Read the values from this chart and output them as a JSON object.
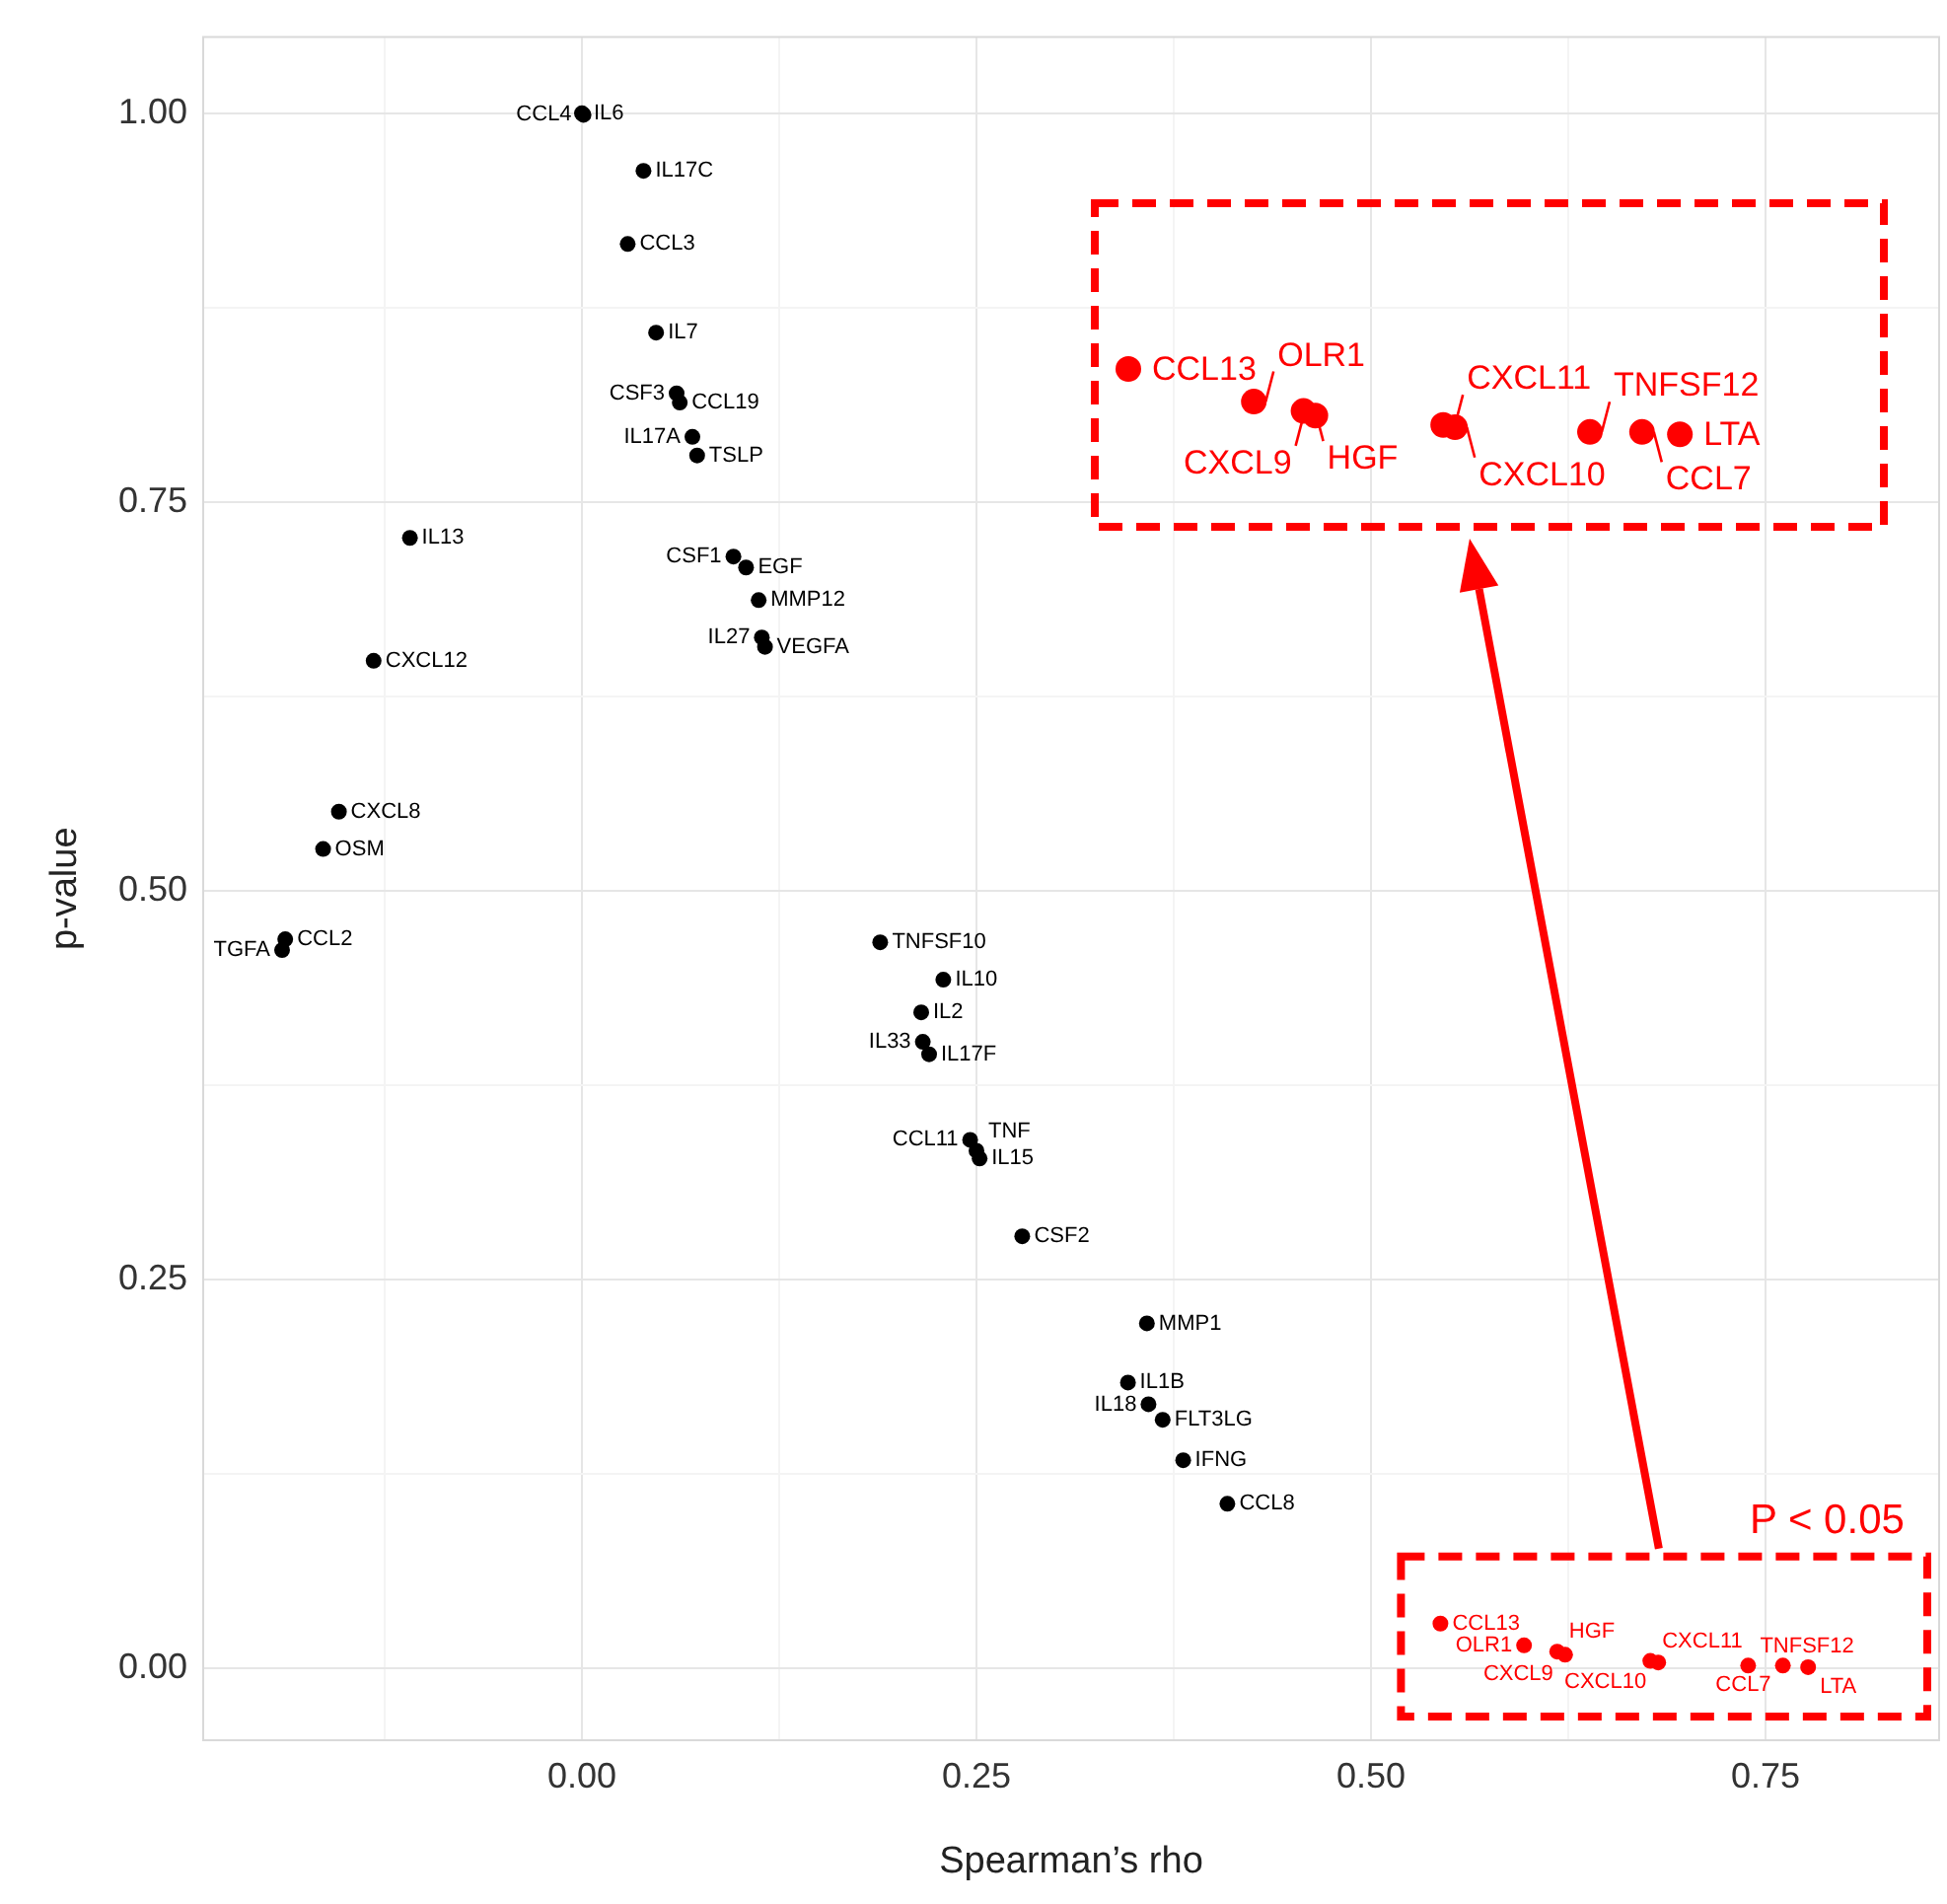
{
  "chart_data": {
    "type": "scatter",
    "xlabel": "Spearman’s rho",
    "ylabel": "p-value",
    "xlim": [
      -0.24,
      0.86
    ],
    "xticks": [
      {
        "value": -0.125,
        "label": null
      },
      {
        "value": 0,
        "label": "0.00"
      },
      {
        "value": 0.125,
        "label": null
      },
      {
        "value": 0.25,
        "label": "0.25"
      },
      {
        "value": 0.375,
        "label": null
      },
      {
        "value": 0.5,
        "label": "0.50"
      },
      {
        "value": 0.625,
        "label": null
      },
      {
        "value": 0.75,
        "label": "0.75"
      }
    ],
    "ylim": [
      -0.046,
      1.049
    ],
    "yticks": [
      {
        "value": 0,
        "label": "0.00"
      },
      {
        "value": 0.125,
        "label": null
      },
      {
        "value": 0.25,
        "label": "0.25"
      },
      {
        "value": 0.375,
        "label": null
      },
      {
        "value": 0.5,
        "label": "0.50"
      },
      {
        "value": 0.625,
        "label": null
      },
      {
        "value": 0.75,
        "label": "0.75"
      },
      {
        "value": 0.875,
        "label": null
      },
      {
        "value": 1,
        "label": "1.00"
      }
    ],
    "grid": true,
    "legend": false,
    "marker": "circle",
    "series": [
      {
        "color": "#000000",
        "x": [
          0.0,
          0.001,
          0.039,
          0.029,
          0.047,
          0.06,
          0.062,
          0.07,
          0.073,
          -0.109,
          0.096,
          0.104,
          0.112,
          0.114,
          0.116,
          -0.132,
          -0.154,
          -0.164,
          -0.188,
          -0.19,
          0.189,
          0.229,
          0.215,
          0.216,
          0.22,
          0.246,
          0.25,
          0.252,
          0.279,
          0.358,
          0.346,
          0.359,
          0.368,
          0.381,
          0.409
        ],
        "values": [
          1.0,
          0.999,
          0.963,
          0.916,
          0.859,
          0.82,
          0.814,
          0.792,
          0.78,
          0.727,
          0.715,
          0.708,
          0.687,
          0.663,
          0.657,
          0.648,
          0.551,
          0.527,
          0.469,
          0.462,
          0.467,
          0.443,
          0.422,
          0.403,
          0.395,
          0.34,
          0.333,
          0.328,
          0.278,
          0.222,
          0.184,
          0.17,
          0.16,
          0.134,
          0.106
        ]
      },
      {
        "color": "#ff0000",
        "x": [
          0.544,
          0.597,
          0.618,
          0.623,
          0.677,
          0.682,
          0.739,
          0.761,
          0.777
        ],
        "values": [
          0.029,
          0.015,
          0.011,
          0.009,
          0.005,
          0.004,
          0.002,
          0.002,
          0.001
        ]
      }
    ],
    "annotations": [
      {
        "text": "IL6",
        "x": 0.0,
        "y": 1.0
      },
      {
        "text": "CCL4",
        "x": 0.001,
        "y": 0.999
      },
      {
        "text": "IL17C",
        "x": 0.039,
        "y": 0.963
      },
      {
        "text": "CCL3",
        "x": 0.029,
        "y": 0.916
      },
      {
        "text": "IL7",
        "x": 0.047,
        "y": 0.859
      },
      {
        "text": "CSF3",
        "x": 0.06,
        "y": 0.82
      },
      {
        "text": "CCL19",
        "x": 0.062,
        "y": 0.814
      },
      {
        "text": "IL17A",
        "x": 0.07,
        "y": 0.792
      },
      {
        "text": "TSLP",
        "x": 0.073,
        "y": 0.78
      },
      {
        "text": "IL13",
        "x": -0.109,
        "y": 0.727
      },
      {
        "text": "CSF1",
        "x": 0.096,
        "y": 0.715
      },
      {
        "text": "EGF",
        "x": 0.104,
        "y": 0.708
      },
      {
        "text": "MMP12",
        "x": 0.112,
        "y": 0.687
      },
      {
        "text": "IL27",
        "x": 0.114,
        "y": 0.663
      },
      {
        "text": "VEGFA",
        "x": 0.116,
        "y": 0.657
      },
      {
        "text": "CXCL12",
        "x": -0.132,
        "y": 0.648
      },
      {
        "text": "CXCL8",
        "x": -0.154,
        "y": 0.551
      },
      {
        "text": "OSM",
        "x": -0.164,
        "y": 0.527
      },
      {
        "text": "CCL2",
        "x": -0.188,
        "y": 0.469
      },
      {
        "text": "TGFA",
        "x": -0.19,
        "y": 0.462
      },
      {
        "text": "TNFSF10",
        "x": 0.189,
        "y": 0.467
      },
      {
        "text": "IL10",
        "x": 0.229,
        "y": 0.443
      },
      {
        "text": "IL2",
        "x": 0.215,
        "y": 0.422
      },
      {
        "text": "IL33",
        "x": 0.216,
        "y": 0.403
      },
      {
        "text": "IL17F",
        "x": 0.22,
        "y": 0.395
      },
      {
        "text": "CCL11",
        "x": 0.246,
        "y": 0.34
      },
      {
        "text": "TNF",
        "x": 0.25,
        "y": 0.333
      },
      {
        "text": "IL15",
        "x": 0.252,
        "y": 0.328
      },
      {
        "text": "CSF2",
        "x": 0.279,
        "y": 0.278
      },
      {
        "text": "MMP1",
        "x": 0.358,
        "y": 0.222
      },
      {
        "text": "IL1B",
        "x": 0.346,
        "y": 0.184
      },
      {
        "text": "IL18",
        "x": 0.359,
        "y": 0.17
      },
      {
        "text": "FLT3LG",
        "x": 0.368,
        "y": 0.16
      },
      {
        "text": "IFNG",
        "x": 0.381,
        "y": 0.134
      },
      {
        "text": "CCL8",
        "x": 0.409,
        "y": 0.106
      },
      {
        "text": "CCL13",
        "x": 0.544,
        "y": 0.029
      },
      {
        "text": "OLR1",
        "x": 0.597,
        "y": 0.015
      },
      {
        "text": "HGF",
        "x": 0.618,
        "y": 0.011
      },
      {
        "text": "CXCL9",
        "x": 0.623,
        "y": 0.009
      },
      {
        "text": "CXCL11",
        "x": 0.677,
        "y": 0.005
      },
      {
        "text": "CXCL10",
        "x": 0.682,
        "y": 0.004
      },
      {
        "text": "TNFSF12",
        "x": 0.739,
        "y": 0.002
      },
      {
        "text": "CCL7",
        "x": 0.761,
        "y": 0.002
      },
      {
        "text": "LTA",
        "x": 0.777,
        "y": 0.001
      },
      "P < 0.05"
    ]
  }
}
